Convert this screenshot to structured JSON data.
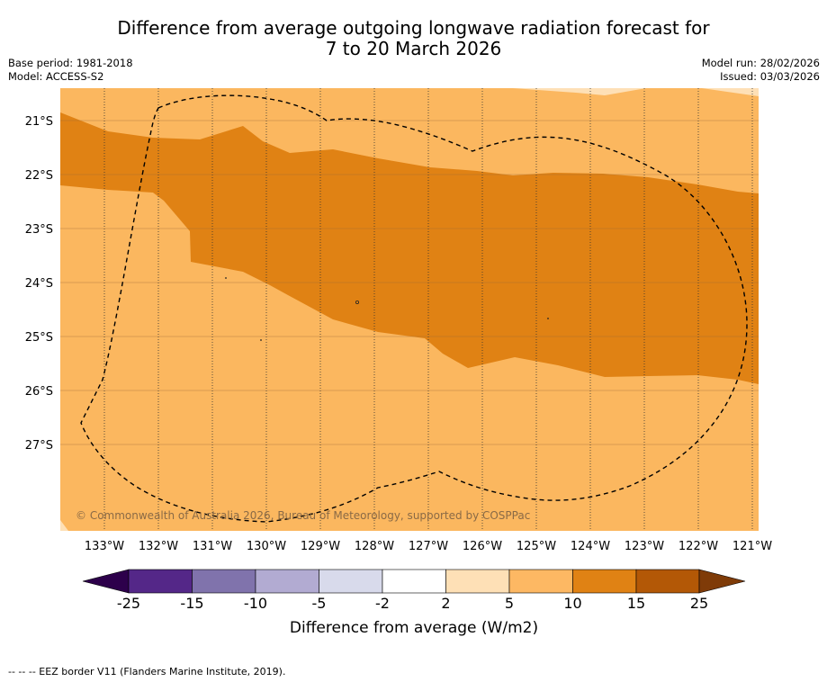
{
  "title": {
    "line1": "Difference from average outgoing longwave radiation forecast for",
    "line2": "7 to 20 March 2026"
  },
  "meta": {
    "base_period": "Base period: 1981-2018",
    "model": "Model: ACCESS-S2",
    "model_run": "Model run: 28/02/2026",
    "issued": "Issued: 03/03/2026"
  },
  "map": {
    "copyright": "© Commonwealth of Australia 2026, Bureau of Meteorology, supported by COSPPac",
    "lat_labels": [
      "21°S",
      "22°S",
      "23°S",
      "24°S",
      "25°S",
      "26°S",
      "27°S"
    ],
    "lon_labels": [
      "133°W",
      "132°W",
      "131°W",
      "130°W",
      "129°W",
      "128°W",
      "127°W",
      "126°W",
      "125°W",
      "124°W",
      "123°W",
      "122°W",
      "121°W"
    ],
    "colors": {
      "band_5_10": "#fbb75f",
      "band_10_15": "#e08214",
      "band_2_5": "#fee0b6"
    }
  },
  "colorbar": {
    "ticks": [
      "-25",
      "-15",
      "-10",
      "-5",
      "-2",
      "2",
      "5",
      "10",
      "15",
      "25"
    ],
    "colors": [
      "#2d004b",
      "#542788",
      "#8073ac",
      "#b2abd2",
      "#d8daeb",
      "#ffffff",
      "#fee0b6",
      "#fdb863",
      "#e08214",
      "#b35806",
      "#7f3b08"
    ],
    "label": "Difference from average (W/m2)"
  },
  "footnote": "--  --  -- EEZ border V11 (Flanders Marine Institute, 2019)."
}
